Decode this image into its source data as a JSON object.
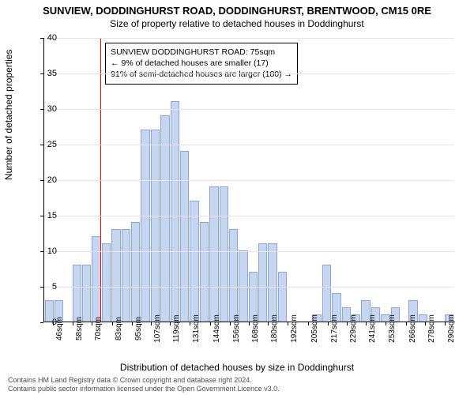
{
  "title_main": "SUNVIEW, DODDINGHURST ROAD, DODDINGHURST, BRENTWOOD, CM15 0RE",
  "title_sub": "Size of property relative to detached houses in Doddinghurst",
  "y_axis_label": "Number of detached properties",
  "x_axis_label": "Distribution of detached houses by size in Doddinghurst",
  "attribution_line1": "Contains HM Land Registry data © Crown copyright and database right 2024.",
  "attribution_line2": "Contains public sector information licensed under the Open Government Licence v3.0.",
  "chart": {
    "type": "bar",
    "background_color": "#ffffff",
    "grid_color": "#e6e6e6",
    "bar_color": "#c6d6f0",
    "bar_border_color": "#8aa5d6",
    "ref_line_color": "#ff0000",
    "annotation_bg": "#ffffff",
    "annotation_border": "#000000",
    "ylim": [
      0,
      40
    ],
    "ytick_step": 5,
    "ref_x_sqm": 75,
    "x_min": 40,
    "x_max": 296,
    "x_step": 6,
    "x_tick_sqm": [
      46,
      58,
      70,
      83,
      95,
      107,
      119,
      131,
      144,
      156,
      168,
      180,
      192,
      205,
      217,
      229,
      241,
      253,
      266,
      278,
      290
    ],
    "values": [
      3,
      3,
      0,
      8,
      8,
      12,
      11,
      13,
      13,
      14,
      27,
      27,
      29,
      31,
      24,
      17,
      14,
      19,
      19,
      13,
      10,
      7,
      11,
      11,
      7,
      0,
      0,
      0,
      1,
      8,
      4,
      2,
      1,
      3,
      2,
      1,
      2,
      0,
      3,
      1,
      0,
      0,
      1
    ],
    "annotation": {
      "line1": "SUNVIEW DODDINGHURST ROAD: 75sqm",
      "line2": "← 9% of detached houses are smaller (17)",
      "line3": "91% of semi-detached houses are larger (180) →"
    }
  }
}
